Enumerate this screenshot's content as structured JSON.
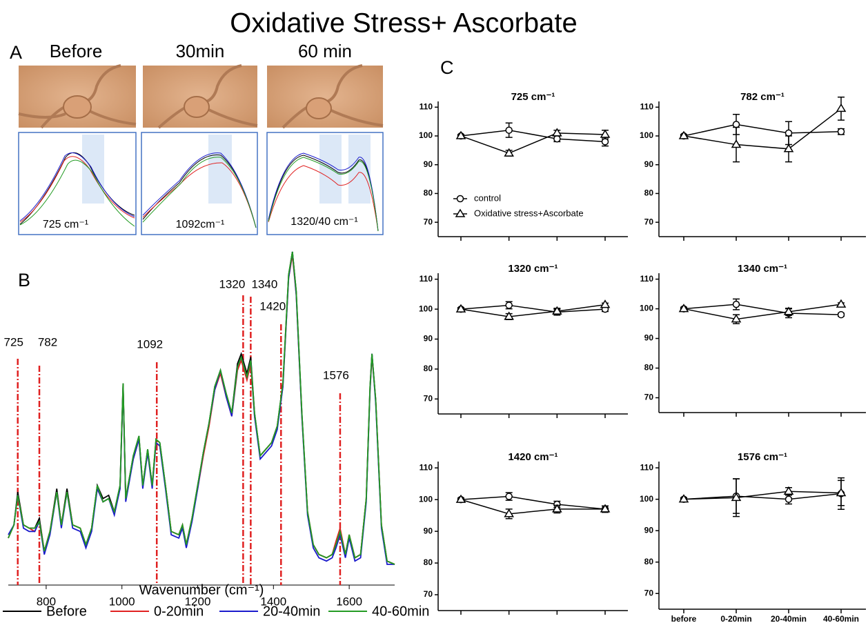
{
  "title": "Oxidative Stress+ Ascorbate",
  "panel_labels": [
    "A",
    "B",
    "C"
  ],
  "panel_a": {
    "time_labels": [
      "Before",
      "30min",
      "60 min"
    ],
    "inset_labels": [
      "725  cm⁻¹",
      "1092cm⁻¹",
      "1320/40  cm⁻¹"
    ]
  },
  "chart_data": [
    {
      "type": "line",
      "x_label": "Wavenumber (cm⁻¹)",
      "xlim": [
        700,
        1720
      ],
      "xticks": [
        800,
        1000,
        1200,
        1400,
        1600
      ],
      "markers": [
        725,
        782,
        1092,
        1320,
        1340,
        1420,
        1576
      ],
      "marker_color": "#e02020",
      "x": [
        700,
        715,
        725,
        740,
        755,
        770,
        782,
        795,
        810,
        828,
        840,
        855,
        870,
        890,
        905,
        920,
        935,
        950,
        965,
        980,
        995,
        1003,
        1010,
        1030,
        1045,
        1055,
        1068,
        1080,
        1090,
        1100,
        1115,
        1130,
        1150,
        1160,
        1170,
        1185,
        1200,
        1215,
        1230,
        1245,
        1260,
        1275,
        1290,
        1305,
        1315,
        1330,
        1340,
        1350,
        1365,
        1380,
        1395,
        1410,
        1425,
        1440,
        1450,
        1460,
        1475,
        1490,
        1505,
        1520,
        1540,
        1555,
        1565,
        1576,
        1590,
        1600,
        1615,
        1630,
        1645,
        1655,
        1660,
        1670,
        1685,
        1700,
        1720
      ],
      "series": [
        {
          "name": "Before",
          "color": "#000000",
          "values": [
            13,
            17,
            27,
            17,
            16,
            16,
            19,
            9,
            15,
            28,
            17,
            28,
            17,
            16,
            11,
            16,
            29,
            25,
            26,
            21,
            29,
            60,
            25,
            38,
            44,
            29,
            40,
            29,
            43,
            42,
            29,
            15,
            14,
            17,
            11,
            19,
            29,
            39,
            48,
            59,
            64,
            57,
            51,
            66,
            69,
            63,
            68,
            51,
            38,
            40,
            42,
            47,
            60,
            93,
            100,
            88,
            51,
            21,
            11,
            8,
            7,
            8,
            11,
            15,
            8,
            14,
            7,
            8,
            25,
            59,
            69,
            55,
            17,
            6,
            5
          ]
        },
        {
          "name": "0-20min",
          "color": "#e02020",
          "values": [
            13,
            17,
            26,
            17,
            16,
            15,
            18,
            9,
            15,
            27,
            17,
            27,
            17,
            16,
            11,
            16,
            28,
            24,
            25,
            21,
            28,
            59,
            25,
            37,
            43,
            29,
            39,
            29,
            42,
            41,
            29,
            15,
            14,
            17,
            11,
            19,
            28,
            38,
            47,
            58,
            63,
            56,
            50,
            64,
            67,
            61,
            66,
            50,
            38,
            40,
            42,
            47,
            59,
            92,
            99,
            87,
            50,
            21,
            11,
            8,
            7,
            8,
            12,
            16,
            8,
            14,
            7,
            8,
            25,
            58,
            68,
            55,
            17,
            6,
            5
          ]
        },
        {
          "name": "20-40min",
          "color": "#1a1acc",
          "values": [
            14,
            17,
            26,
            16,
            15,
            15,
            18,
            8,
            14,
            27,
            16,
            27,
            16,
            15,
            10,
            15,
            28,
            24,
            25,
            20,
            28,
            59,
            24,
            37,
            43,
            28,
            39,
            28,
            42,
            41,
            28,
            14,
            13,
            16,
            10,
            18,
            28,
            39,
            48,
            58,
            64,
            56,
            50,
            65,
            68,
            62,
            67,
            50,
            37,
            39,
            41,
            46,
            59,
            92,
            100,
            87,
            50,
            20,
            10,
            7,
            6,
            7,
            10,
            14,
            7,
            13,
            6,
            7,
            24,
            58,
            69,
            54,
            16,
            5,
            5
          ]
        },
        {
          "name": "40-60min",
          "color": "#239b23",
          "values": [
            13,
            17,
            26,
            17,
            16,
            16,
            18,
            9,
            15,
            27,
            17,
            27,
            17,
            16,
            11,
            16,
            29,
            24,
            25,
            21,
            29,
            60,
            25,
            38,
            44,
            29,
            40,
            29,
            43,
            42,
            29,
            15,
            14,
            17,
            11,
            19,
            29,
            39,
            48,
            59,
            64,
            57,
            51,
            65,
            68,
            62,
            67,
            51,
            38,
            40,
            42,
            47,
            60,
            93,
            100,
            88,
            51,
            21,
            11,
            8,
            7,
            8,
            11,
            15,
            8,
            14,
            7,
            8,
            25,
            59,
            69,
            55,
            17,
            6,
            5
          ]
        }
      ]
    },
    {
      "type": "errorbar",
      "title": "725 cm⁻¹",
      "categories": [
        null,
        null,
        null,
        null
      ],
      "ylim": [
        65,
        112
      ],
      "yticks": [
        70,
        80,
        90,
        100,
        110
      ],
      "series": [
        {
          "name": "control",
          "marker": "circle",
          "color": "#000000",
          "values": [
            100,
            102,
            99,
            98
          ],
          "errors": [
            0.5,
            2.5,
            1,
            1.5
          ]
        },
        {
          "name": "Oxidative stress+Ascorbate",
          "marker": "triangle",
          "color": "#000000",
          "values": [
            100,
            94,
            101,
            100.5
          ],
          "errors": [
            0.5,
            1,
            1,
            1.5
          ]
        }
      ]
    },
    {
      "type": "errorbar",
      "title": "782 cm⁻¹",
      "categories": [
        null,
        null,
        null,
        null
      ],
      "ylim": [
        65,
        112
      ],
      "yticks": [
        70,
        80,
        90,
        100,
        110
      ],
      "series": [
        {
          "marker": "circle",
          "color": "#000000",
          "values": [
            100,
            104,
            101,
            101.5
          ],
          "errors": [
            0.5,
            3.5,
            4,
            1
          ]
        },
        {
          "marker": "triangle",
          "color": "#000000",
          "values": [
            100,
            97,
            95.5,
            109.5
          ],
          "errors": [
            0.5,
            6,
            4.5,
            4
          ]
        }
      ]
    },
    {
      "type": "errorbar",
      "title": "1320 cm⁻¹",
      "categories": [
        null,
        null,
        null,
        null
      ],
      "ylim": [
        65,
        112
      ],
      "yticks": [
        70,
        80,
        90,
        100,
        110
      ],
      "series": [
        {
          "marker": "circle",
          "color": "#000000",
          "values": [
            100,
            101.3,
            99,
            100
          ],
          "errors": [
            0.5,
            1.2,
            1,
            0.8
          ]
        },
        {
          "marker": "triangle",
          "color": "#000000",
          "values": [
            100,
            97.5,
            99.3,
            101.5
          ],
          "errors": [
            0.5,
            1,
            1,
            0.5
          ]
        }
      ]
    },
    {
      "type": "errorbar",
      "title": "1340 cm⁻¹",
      "categories": [
        null,
        null,
        null,
        null
      ],
      "ylim": [
        65,
        112
      ],
      "yticks": [
        70,
        80,
        90,
        100,
        110
      ],
      "series": [
        {
          "marker": "circle",
          "color": "#000000",
          "values": [
            100,
            101.5,
            98.5,
            98
          ],
          "errors": [
            0.5,
            1.8,
            1.5,
            0.5
          ]
        },
        {
          "marker": "triangle",
          "color": "#000000",
          "values": [
            100,
            96.5,
            99,
            101.5
          ],
          "errors": [
            0.5,
            1.5,
            1.2,
            0.5
          ]
        }
      ]
    },
    {
      "type": "errorbar",
      "title": "1420 cm⁻¹",
      "categories": [
        null,
        null,
        null,
        null
      ],
      "ylim": [
        65,
        112
      ],
      "yticks": [
        70,
        80,
        90,
        100,
        110
      ],
      "series": [
        {
          "marker": "circle",
          "color": "#000000",
          "values": [
            100,
            101,
            98.5,
            97
          ],
          "errors": [
            0.5,
            1.2,
            1,
            1
          ]
        },
        {
          "marker": "triangle",
          "color": "#000000",
          "values": [
            100,
            95.5,
            97,
            97
          ],
          "errors": [
            0.5,
            1.5,
            1.2,
            1
          ]
        }
      ]
    },
    {
      "type": "errorbar",
      "title": "1576 cm⁻¹",
      "categories": [
        "before",
        "0-20min",
        "20-40min",
        "40-60min"
      ],
      "ylim": [
        65,
        112
      ],
      "yticks": [
        70,
        80,
        90,
        100,
        110
      ],
      "series": [
        {
          "marker": "circle",
          "color": "#000000",
          "values": [
            100,
            101,
            100,
            101.8
          ],
          "errors": [
            0.5,
            5.5,
            1.5,
            5
          ]
        },
        {
          "marker": "triangle",
          "color": "#000000",
          "values": [
            100,
            100.5,
            102.5,
            102
          ],
          "errors": [
            0.5,
            6,
            1.2,
            4
          ]
        }
      ]
    }
  ]
}
